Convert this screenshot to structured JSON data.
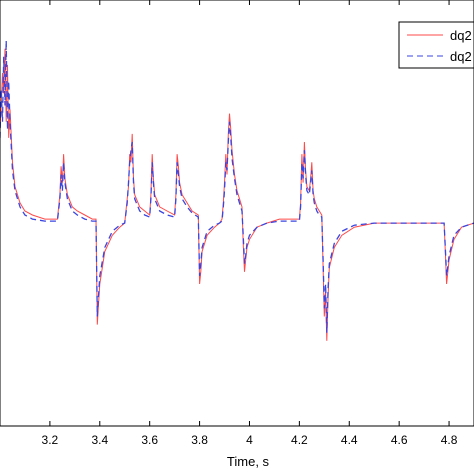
{
  "chart_data": {
    "type": "line",
    "title": "",
    "xlabel": "Time, s",
    "ylabel": "",
    "xlim": [
      3.0,
      4.9
    ],
    "ylim": [
      -0.05,
      1.0
    ],
    "x_ticks": [
      3.2,
      3.4,
      3.6,
      3.8,
      4.0,
      4.2,
      4.4,
      4.6,
      4.8
    ],
    "x_tick_labels": [
      "3.2",
      "3.4",
      "3.6",
      "3.8",
      "4",
      "4.2",
      "4.4",
      "4.6",
      "4.8"
    ],
    "grid": false,
    "legend_position": "top-right",
    "series": [
      {
        "name": "dq2",
        "style": "solid",
        "color": "#ff4a4a",
        "points": [
          [
            3.0,
            0.68
          ],
          [
            3.005,
            0.74
          ],
          [
            3.01,
            0.82
          ],
          [
            3.015,
            0.77
          ],
          [
            3.02,
            0.88
          ],
          [
            3.025,
            0.7
          ],
          [
            3.03,
            0.84
          ],
          [
            3.035,
            0.66
          ],
          [
            3.04,
            0.73
          ],
          [
            3.05,
            0.6
          ],
          [
            3.06,
            0.54
          ],
          [
            3.08,
            0.5
          ],
          [
            3.1,
            0.48
          ],
          [
            3.13,
            0.47
          ],
          [
            3.18,
            0.46
          ],
          [
            3.23,
            0.46
          ],
          [
            3.24,
            0.52
          ],
          [
            3.245,
            0.59
          ],
          [
            3.25,
            0.55
          ],
          [
            3.255,
            0.62
          ],
          [
            3.26,
            0.56
          ],
          [
            3.27,
            0.52
          ],
          [
            3.29,
            0.49
          ],
          [
            3.31,
            0.48
          ],
          [
            3.34,
            0.47
          ],
          [
            3.37,
            0.46
          ],
          [
            3.385,
            0.46
          ],
          [
            3.39,
            0.2
          ],
          [
            3.395,
            0.25
          ],
          [
            3.4,
            0.3
          ],
          [
            3.42,
            0.38
          ],
          [
            3.45,
            0.42
          ],
          [
            3.48,
            0.44
          ],
          [
            3.5,
            0.45
          ],
          [
            3.51,
            0.51
          ],
          [
            3.515,
            0.54
          ],
          [
            3.52,
            0.62
          ],
          [
            3.525,
            0.6
          ],
          [
            3.53,
            0.67
          ],
          [
            3.535,
            0.56
          ],
          [
            3.54,
            0.52
          ],
          [
            3.56,
            0.49
          ],
          [
            3.58,
            0.48
          ],
          [
            3.6,
            0.47
          ],
          [
            3.605,
            0.52
          ],
          [
            3.61,
            0.62
          ],
          [
            3.615,
            0.56
          ],
          [
            3.62,
            0.52
          ],
          [
            3.64,
            0.49
          ],
          [
            3.67,
            0.48
          ],
          [
            3.7,
            0.47
          ],
          [
            3.705,
            0.52
          ],
          [
            3.71,
            0.62
          ],
          [
            3.715,
            0.59
          ],
          [
            3.72,
            0.55
          ],
          [
            3.73,
            0.52
          ],
          [
            3.75,
            0.5
          ],
          [
            3.77,
            0.48
          ],
          [
            3.795,
            0.47
          ],
          [
            3.8,
            0.3
          ],
          [
            3.805,
            0.33
          ],
          [
            3.81,
            0.38
          ],
          [
            3.83,
            0.42
          ],
          [
            3.86,
            0.44
          ],
          [
            3.88,
            0.45
          ],
          [
            3.89,
            0.46
          ],
          [
            3.895,
            0.5
          ],
          [
            3.9,
            0.55
          ],
          [
            3.905,
            0.62
          ],
          [
            3.91,
            0.57
          ],
          [
            3.915,
            0.67
          ],
          [
            3.92,
            0.72
          ],
          [
            3.925,
            0.68
          ],
          [
            3.93,
            0.63
          ],
          [
            3.94,
            0.57
          ],
          [
            3.95,
            0.53
          ],
          [
            3.96,
            0.51
          ],
          [
            3.97,
            0.49
          ],
          [
            3.975,
            0.4
          ],
          [
            3.98,
            0.33
          ],
          [
            3.985,
            0.36
          ],
          [
            3.99,
            0.39
          ],
          [
            4.0,
            0.41
          ],
          [
            4.03,
            0.44
          ],
          [
            4.07,
            0.45
          ],
          [
            4.12,
            0.46
          ],
          [
            4.2,
            0.46
          ],
          [
            4.205,
            0.5
          ],
          [
            4.21,
            0.62
          ],
          [
            4.215,
            0.55
          ],
          [
            4.22,
            0.65
          ],
          [
            4.225,
            0.58
          ],
          [
            4.23,
            0.54
          ],
          [
            4.24,
            0.53
          ],
          [
            4.245,
            0.56
          ],
          [
            4.25,
            0.6
          ],
          [
            4.255,
            0.53
          ],
          [
            4.26,
            0.51
          ],
          [
            4.27,
            0.49
          ],
          [
            4.28,
            0.48
          ],
          [
            4.29,
            0.47
          ],
          [
            4.295,
            0.34
          ],
          [
            4.3,
            0.22
          ],
          [
            4.305,
            0.28
          ],
          [
            4.31,
            0.16
          ],
          [
            4.315,
            0.27
          ],
          [
            4.32,
            0.34
          ],
          [
            4.34,
            0.39
          ],
          [
            4.37,
            0.42
          ],
          [
            4.42,
            0.44
          ],
          [
            4.5,
            0.45
          ],
          [
            4.6,
            0.45
          ],
          [
            4.7,
            0.45
          ],
          [
            4.78,
            0.45
          ],
          [
            4.785,
            0.38
          ],
          [
            4.79,
            0.3
          ],
          [
            4.8,
            0.36
          ],
          [
            4.82,
            0.41
          ],
          [
            4.85,
            0.44
          ],
          [
            4.9,
            0.45
          ]
        ]
      },
      {
        "name": "dq2",
        "style": "dashed",
        "color": "#3a45e0",
        "points": [
          [
            3.0,
            0.66
          ],
          [
            3.005,
            0.78
          ],
          [
            3.01,
            0.7
          ],
          [
            3.015,
            0.86
          ],
          [
            3.02,
            0.74
          ],
          [
            3.025,
            0.9
          ],
          [
            3.03,
            0.68
          ],
          [
            3.035,
            0.8
          ],
          [
            3.04,
            0.7
          ],
          [
            3.05,
            0.58
          ],
          [
            3.06,
            0.53
          ],
          [
            3.08,
            0.49
          ],
          [
            3.1,
            0.47
          ],
          [
            3.13,
            0.46
          ],
          [
            3.18,
            0.455
          ],
          [
            3.23,
            0.455
          ],
          [
            3.24,
            0.51
          ],
          [
            3.245,
            0.57
          ],
          [
            3.25,
            0.53
          ],
          [
            3.255,
            0.6
          ],
          [
            3.26,
            0.55
          ],
          [
            3.27,
            0.51
          ],
          [
            3.29,
            0.48
          ],
          [
            3.31,
            0.47
          ],
          [
            3.34,
            0.46
          ],
          [
            3.37,
            0.455
          ],
          [
            3.385,
            0.455
          ],
          [
            3.39,
            0.22
          ],
          [
            3.395,
            0.27
          ],
          [
            3.4,
            0.32
          ],
          [
            3.42,
            0.39
          ],
          [
            3.45,
            0.43
          ],
          [
            3.48,
            0.445
          ],
          [
            3.5,
            0.45
          ],
          [
            3.51,
            0.5
          ],
          [
            3.515,
            0.55
          ],
          [
            3.52,
            0.6
          ],
          [
            3.525,
            0.63
          ],
          [
            3.53,
            0.65
          ],
          [
            3.535,
            0.55
          ],
          [
            3.54,
            0.51
          ],
          [
            3.56,
            0.48
          ],
          [
            3.58,
            0.47
          ],
          [
            3.6,
            0.465
          ],
          [
            3.605,
            0.51
          ],
          [
            3.61,
            0.6
          ],
          [
            3.615,
            0.55
          ],
          [
            3.62,
            0.51
          ],
          [
            3.64,
            0.48
          ],
          [
            3.67,
            0.47
          ],
          [
            3.7,
            0.465
          ],
          [
            3.705,
            0.51
          ],
          [
            3.71,
            0.6
          ],
          [
            3.715,
            0.57
          ],
          [
            3.72,
            0.54
          ],
          [
            3.73,
            0.51
          ],
          [
            3.75,
            0.49
          ],
          [
            3.77,
            0.475
          ],
          [
            3.795,
            0.465
          ],
          [
            3.8,
            0.32
          ],
          [
            3.805,
            0.35
          ],
          [
            3.81,
            0.39
          ],
          [
            3.83,
            0.43
          ],
          [
            3.86,
            0.445
          ],
          [
            3.88,
            0.45
          ],
          [
            3.89,
            0.455
          ],
          [
            3.895,
            0.49
          ],
          [
            3.9,
            0.53
          ],
          [
            3.905,
            0.6
          ],
          [
            3.91,
            0.58
          ],
          [
            3.915,
            0.65
          ],
          [
            3.92,
            0.7
          ],
          [
            3.925,
            0.66
          ],
          [
            3.93,
            0.61
          ],
          [
            3.94,
            0.56
          ],
          [
            3.95,
            0.52
          ],
          [
            3.96,
            0.5
          ],
          [
            3.97,
            0.48
          ],
          [
            3.975,
            0.42
          ],
          [
            3.98,
            0.35
          ],
          [
            3.985,
            0.37
          ],
          [
            3.99,
            0.4
          ],
          [
            4.0,
            0.42
          ],
          [
            4.03,
            0.44
          ],
          [
            4.07,
            0.45
          ],
          [
            4.12,
            0.455
          ],
          [
            4.2,
            0.455
          ],
          [
            4.205,
            0.49
          ],
          [
            4.21,
            0.6
          ],
          [
            4.215,
            0.56
          ],
          [
            4.22,
            0.63
          ],
          [
            4.225,
            0.57
          ],
          [
            4.23,
            0.53
          ],
          [
            4.24,
            0.52
          ],
          [
            4.245,
            0.55
          ],
          [
            4.25,
            0.58
          ],
          [
            4.255,
            0.52
          ],
          [
            4.26,
            0.5
          ],
          [
            4.27,
            0.48
          ],
          [
            4.28,
            0.47
          ],
          [
            4.29,
            0.465
          ],
          [
            4.295,
            0.36
          ],
          [
            4.3,
            0.24
          ],
          [
            4.305,
            0.3
          ],
          [
            4.31,
            0.18
          ],
          [
            4.315,
            0.29
          ],
          [
            4.32,
            0.35
          ],
          [
            4.34,
            0.4
          ],
          [
            4.37,
            0.43
          ],
          [
            4.42,
            0.445
          ],
          [
            4.5,
            0.45
          ],
          [
            4.6,
            0.45
          ],
          [
            4.7,
            0.45
          ],
          [
            4.78,
            0.45
          ],
          [
            4.785,
            0.39
          ],
          [
            4.79,
            0.32
          ],
          [
            4.8,
            0.37
          ],
          [
            4.82,
            0.42
          ],
          [
            4.85,
            0.44
          ],
          [
            4.9,
            0.45
          ]
        ]
      }
    ]
  }
}
